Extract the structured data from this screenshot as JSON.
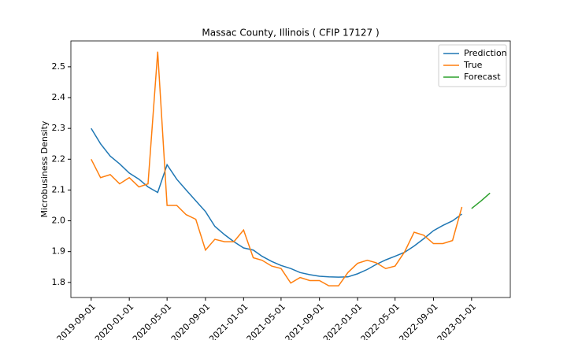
{
  "chart_data": {
    "type": "line",
    "title": "Massac County, Illinois ( CFIP 17127 )",
    "y_label": "Microbusiness Density",
    "xlim": [
      "2019-06-28",
      "2023-05-05"
    ],
    "ylim": [
      1.751,
      2.584
    ],
    "xticks": [
      "2019-09-01",
      "2020-01-01",
      "2020-05-01",
      "2020-09-01",
      "2021-01-01",
      "2021-05-01",
      "2021-09-01",
      "2022-01-01",
      "2022-05-01",
      "2022-09-01",
      "2023-01-01"
    ],
    "yticks": [
      1.8,
      1.9,
      {
        "value": 2,
        "label": "2.0"
      },
      2.1,
      2.2,
      2.3,
      2.4,
      2.5
    ],
    "legend": "upper right",
    "series": [
      {
        "name": "Prediction",
        "color": "#1f77b4",
        "x": [
          "2019-09-01",
          "2019-10-01",
          "2019-11-01",
          "2019-12-01",
          "2020-01-01",
          "2020-02-01",
          "2020-03-01",
          "2020-04-01",
          "2020-05-01",
          "2020-06-01",
          "2020-07-01",
          "2020-08-01",
          "2020-09-01",
          "2020-10-01",
          "2020-11-01",
          "2020-12-01",
          "2021-01-01",
          "2021-02-01",
          "2021-03-01",
          "2021-04-01",
          "2021-05-01",
          "2021-06-01",
          "2021-07-01",
          "2021-08-01",
          "2021-09-01",
          "2021-10-01",
          "2021-11-01",
          "2021-12-01",
          "2022-01-01",
          "2022-02-01",
          "2022-03-01",
          "2022-04-01",
          "2022-05-01",
          "2022-06-01",
          "2022-07-01",
          "2022-08-01",
          "2022-09-01",
          "2022-10-01",
          "2022-11-01",
          "2022-12-01"
        ],
        "values": [
          2.3,
          2.25,
          2.21,
          2.185,
          2.155,
          2.135,
          2.11,
          2.092,
          2.182,
          2.135,
          2.1,
          2.065,
          2.03,
          1.982,
          1.955,
          1.932,
          1.912,
          1.905,
          1.885,
          1.868,
          1.855,
          1.845,
          1.832,
          1.825,
          1.82,
          1.818,
          1.817,
          1.818,
          1.828,
          1.842,
          1.858,
          1.873,
          1.885,
          1.898,
          1.918,
          1.942,
          1.968,
          1.985,
          2.0,
          2.022
        ]
      },
      {
        "name": "True",
        "color": "#ff7f0e",
        "x": [
          "2019-09-01",
          "2019-10-01",
          "2019-11-01",
          "2019-12-01",
          "2020-01-01",
          "2020-02-01",
          "2020-03-01",
          "2020-04-01",
          "2020-05-01",
          "2020-06-01",
          "2020-07-01",
          "2020-08-01",
          "2020-09-01",
          "2020-10-01",
          "2020-11-01",
          "2020-12-01",
          "2021-01-01",
          "2021-02-01",
          "2021-03-01",
          "2021-04-01",
          "2021-05-01",
          "2021-06-01",
          "2021-07-01",
          "2021-08-01",
          "2021-09-01",
          "2021-10-01",
          "2021-11-01",
          "2021-12-01",
          "2022-01-01",
          "2022-02-01",
          "2022-03-01",
          "2022-04-01",
          "2022-05-01",
          "2022-06-01",
          "2022-07-01",
          "2022-08-01",
          "2022-09-01",
          "2022-10-01",
          "2022-11-01",
          "2022-12-01"
        ],
        "values": [
          2.2,
          2.14,
          2.15,
          2.12,
          2.14,
          2.11,
          2.12,
          2.549,
          2.05,
          2.05,
          2.02,
          2.005,
          1.905,
          1.94,
          1.932,
          1.932,
          1.97,
          1.88,
          1.872,
          1.853,
          1.845,
          1.798,
          1.816,
          1.806,
          1.806,
          1.789,
          1.789,
          1.832,
          1.862,
          1.872,
          1.864,
          1.845,
          1.853,
          1.9,
          1.963,
          1.953,
          1.926,
          1.926,
          1.936,
          2.045
        ]
      },
      {
        "name": "Forecast",
        "color": "#2ca02c",
        "x": [
          "2023-01-01",
          "2023-02-01",
          "2023-03-01"
        ],
        "values": [
          2.04,
          2.065,
          2.09
        ]
      }
    ]
  }
}
